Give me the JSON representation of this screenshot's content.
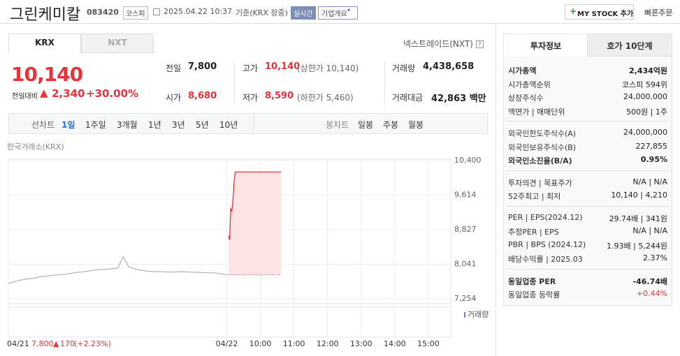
{
  "header": {
    "name": "그린케미칼",
    "code": "083420",
    "market": "코스피",
    "datetime": "2025.04.22 10:37",
    "basis": "기준(KRX 장중)",
    "realtime": "실시간",
    "company": "기업개요",
    "mystock": "MY STOCK 추가",
    "quick_order": "빠른주문"
  },
  "exchange_tabs": [
    "KRX",
    "NXT"
  ],
  "nxt_link": "넥스트레이드(NXT)",
  "price": {
    "current": "10,140",
    "change_label": "전일대비",
    "change": "2,340",
    "rate": "+30.00%"
  },
  "stats": [
    {
      "label": "전일",
      "value": "7,800"
    },
    {
      "label": "고가",
      "value": "10,140",
      "extra": "(상한가 10,140)"
    },
    {
      "label": "거래량",
      "value": "4,438,658"
    },
    {
      "label": "시가",
      "value": "8,680"
    },
    {
      "label": "저가",
      "value": "8,590",
      "extra": "(하한가 5,460)"
    },
    {
      "label": "거래대금",
      "value": "42,863 백만"
    }
  ],
  "periods": {
    "line_label": "선차트",
    "line_items": [
      "1일",
      "1주일",
      "3개월",
      "1년",
      "3년",
      "5년",
      "10년"
    ],
    "candle_label": "봉차트",
    "candle_items": [
      "일봉",
      "주봉",
      "월봉"
    ]
  },
  "chart_data": {
    "type": "line",
    "source": "한국거래소(KRX)",
    "volume_label": "거래량",
    "xlim": [
      0,
      790
    ],
    "ylim": [
      7254,
      10400
    ],
    "yticks": [
      {
        "value": 7254,
        "label": "7,254"
      },
      {
        "value": 8041,
        "label": "8,041"
      },
      {
        "value": 8827,
        "label": "8,827"
      },
      {
        "value": 9614,
        "label": "9,614"
      },
      {
        "value": 10400,
        "label": "10,400"
      }
    ],
    "xticks": [
      {
        "value": 0,
        "label": "04/21"
      },
      {
        "value": 390,
        "label": "04/22"
      },
      {
        "value": 450,
        "label": "10:00"
      },
      {
        "value": 510,
        "label": "11:00"
      },
      {
        "value": 570,
        "label": "12:00"
      },
      {
        "value": 630,
        "label": "13:00"
      },
      {
        "value": 690,
        "label": "14:00"
      },
      {
        "value": 750,
        "label": "15:00"
      }
    ],
    "base_line": 7800,
    "series": [
      {
        "name": "04/21",
        "color": "#b5b5b5",
        "x": [
          0,
          15,
          30,
          45,
          60,
          75,
          90,
          105,
          120,
          135,
          150,
          165,
          180,
          195,
          205,
          215,
          230,
          250,
          270,
          290,
          310,
          330,
          350,
          370,
          390
        ],
        "values": [
          7604,
          7660,
          7700,
          7720,
          7760,
          7780,
          7800,
          7820,
          7850,
          7870,
          7900,
          7920,
          7930,
          7950,
          8210,
          7980,
          7920,
          7880,
          7870,
          7860,
          7870,
          7860,
          7850,
          7840,
          7800
        ]
      },
      {
        "name": "04/22",
        "color": "#e8333a",
        "fill": "#fde3e4",
        "x": [
          393,
          395,
          397,
          399,
          401,
          403,
          405,
          487
        ],
        "values": [
          8680,
          8590,
          9300,
          9250,
          9500,
          9900,
          10140,
          10140
        ]
      }
    ],
    "footer": {
      "price": "7,800",
      "change": "170",
      "rate": "(+2.23%)"
    }
  },
  "info_tabs": [
    "투자정보",
    "호가 10단계"
  ],
  "info_groups": [
    [
      {
        "label": "시가총액",
        "value": "2,434억원",
        "bold": true
      },
      {
        "label": "시가총액순위",
        "value": "코스피 594위"
      },
      {
        "label": "상장주식수",
        "value": "24,000,000"
      },
      {
        "label": "액면가 | 매매단위",
        "value": "500원 | 1주"
      }
    ],
    [
      {
        "label": "외국인한도주식수(A)",
        "value": "24,000,000"
      },
      {
        "label": "외국인보유주식수(B)",
        "value": "227,855"
      },
      {
        "label": "외국인소진율(B/A)",
        "value": "0.95%",
        "bold": true
      }
    ],
    [
      {
        "label": "투자의견 | 목표주가",
        "value": "N/A | N/A"
      },
      {
        "label": "52주최고 | 최저",
        "value": "10,140 | 4,210"
      }
    ],
    [
      {
        "label": "PER | EPS(2024.12)",
        "value": "29.74배 | 341원"
      },
      {
        "label": "추정PER | EPS",
        "value": "N/A | N/A"
      },
      {
        "label": "PBR | BPS (2024.12)",
        "value": "1.93배 | 5,244원"
      },
      {
        "label": "배당수익률 | 2025.03",
        "value": "2.37%"
      }
    ],
    [
      {
        "label": "동일업종 PER",
        "value": "-46.74배",
        "bold": true
      },
      {
        "label": "동일업종 등락률",
        "value": "+0.44%",
        "red": true
      }
    ]
  ]
}
